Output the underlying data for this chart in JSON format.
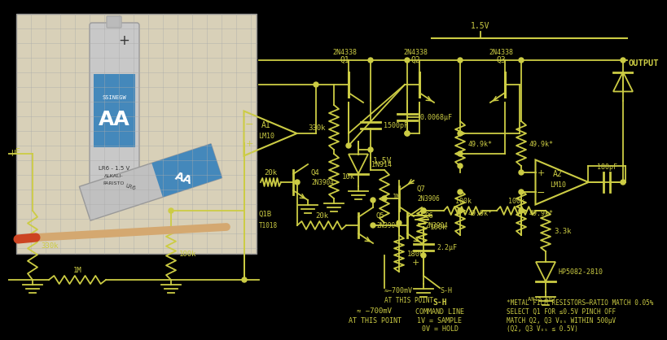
{
  "bg_color": "#000000",
  "cc": "#cccc44",
  "tc": "#cccc44",
  "photo_bg": "#c8c0a0",
  "grid_color": "#aaaaaa",
  "notes": [
    "*METAL FILM RESISTORS—RATIO MATCH 0.05%",
    "SELECT Q1 FOR ≤0.5V PINCH OFF",
    "MATCH Q2, Q3 Vₒₛ WITHIN 500μV",
    "(Q2, Q3 Vₒₛ ≤ 0.5V)"
  ]
}
